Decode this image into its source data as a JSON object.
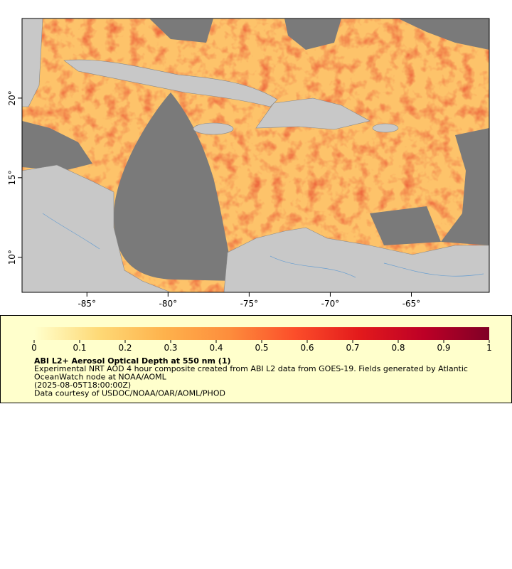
{
  "map": {
    "xlim": [
      -89,
      -60.2
    ],
    "ylim": [
      7.8,
      25
    ],
    "xticks": [
      {
        "value": -85,
        "label": "-85°"
      },
      {
        "value": -80,
        "label": "-80°"
      },
      {
        "value": -75,
        "label": "-75°"
      },
      {
        "value": -70,
        "label": "-70°"
      },
      {
        "value": -65,
        "label": "-65°"
      }
    ],
    "yticks": [
      {
        "value": 10,
        "label": "10°"
      },
      {
        "value": 15,
        "label": "15°"
      },
      {
        "value": 20,
        "label": "20°"
      }
    ]
  },
  "colorbar": {
    "lim": [
      0,
      1
    ],
    "ticks": [
      0,
      0.1,
      0.2,
      0.3,
      0.4,
      0.5,
      0.6,
      0.7,
      0.8,
      0.9,
      1
    ],
    "colors": [
      "#ffffcc",
      "#fed976",
      "#feb24c",
      "#fd8d3c",
      "#fc4e2a",
      "#e31a1c",
      "#bd0026",
      "#800026"
    ]
  },
  "legend": {
    "title": "ABI L2+ Aerosol Optical Depth at 550 nm (1)",
    "lines": [
      "Experimental NRT AOD 4 hour composite created from ABI L2 data from GOES-19. Fields generated by Atlantic",
      "OceanWatch node at NOAA/AOML",
      "(2025-08-05T18:00:00Z)",
      "Data courtesy of USDOC/NOAA/OAR/AOML/PHOD"
    ]
  }
}
